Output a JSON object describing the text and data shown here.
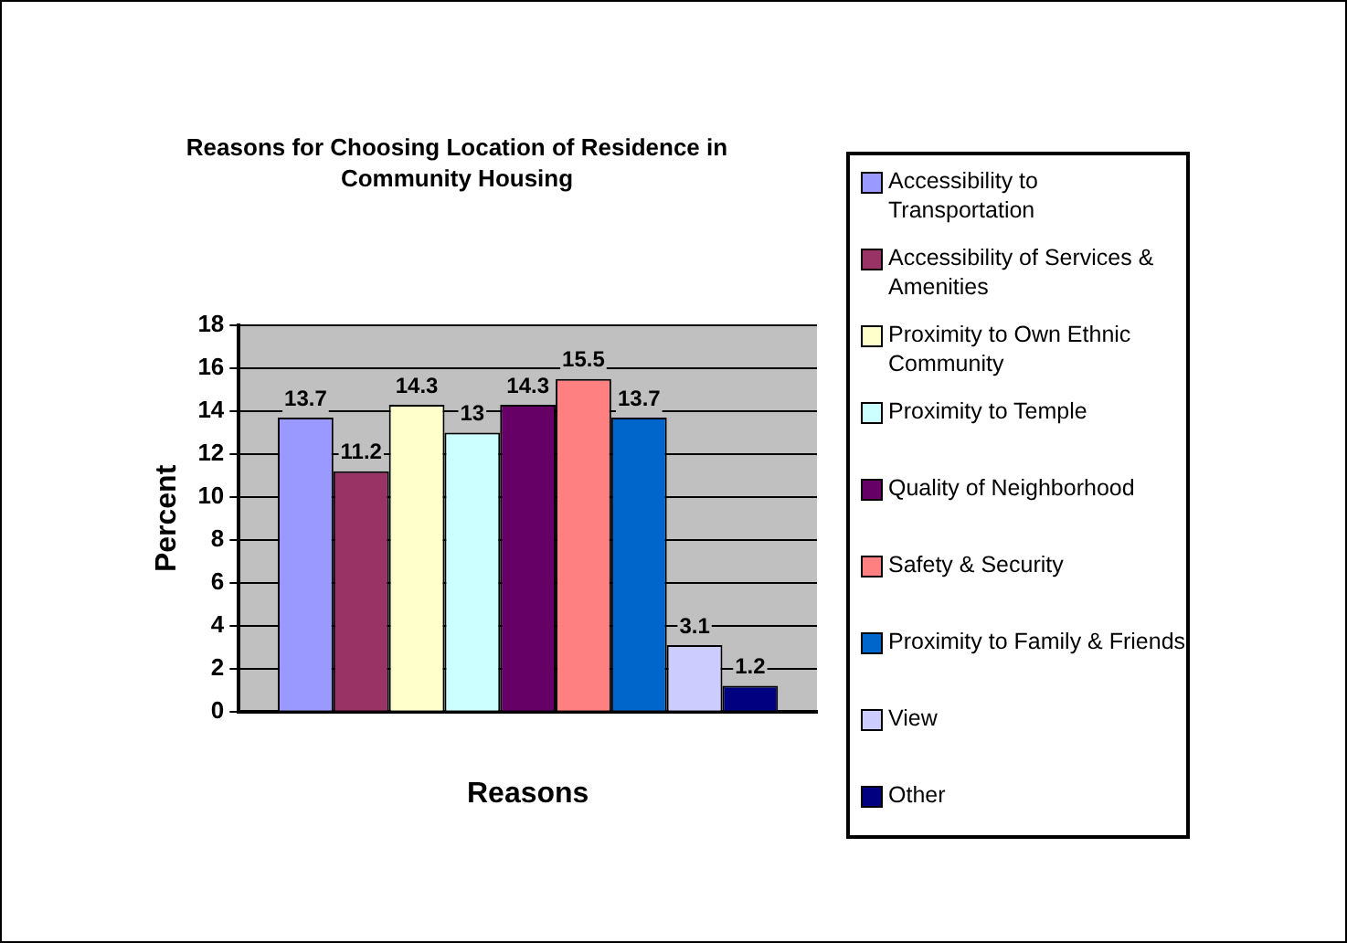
{
  "chart_data": {
    "type": "bar",
    "title": "Reasons for Choosing Location of Residence in Community Housing",
    "xlabel": "Reasons",
    "ylabel": "Percent",
    "categories": [
      null
    ],
    "series": [
      {
        "name": "Accessibility to Transportation",
        "color": "#9999ff",
        "values": [
          13.7
        ]
      },
      {
        "name": "Accessibility of Services & Amenities",
        "color": "#993366",
        "values": [
          11.2
        ]
      },
      {
        "name": "Proximity to Own Ethnic Community",
        "color": "#ffffcc",
        "values": [
          14.3
        ]
      },
      {
        "name": "Proximity to Temple",
        "color": "#ccffff",
        "values": [
          13
        ]
      },
      {
        "name": "Quality of Neighborhood",
        "color": "#660066",
        "values": [
          14.3
        ]
      },
      {
        "name": "Safety & Security",
        "color": "#ff8080",
        "values": [
          15.5
        ]
      },
      {
        "name": "Proximity to Family & Friends",
        "color": "#0066cc",
        "values": [
          13.7
        ]
      },
      {
        "name": "View",
        "color": "#ccccff",
        "values": [
          3.1
        ]
      },
      {
        "name": "Other",
        "color": "#000080",
        "values": [
          1.2
        ]
      }
    ],
    "ylim": [
      0,
      18
    ],
    "yticks": [
      0,
      2,
      4,
      6,
      8,
      10,
      12,
      14,
      16,
      18
    ],
    "grid": "y",
    "legend": "right",
    "data_labels": true
  }
}
